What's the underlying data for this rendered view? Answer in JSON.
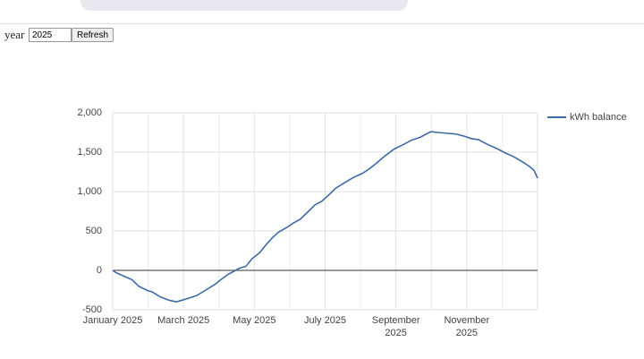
{
  "toolbar": {
    "label": "year",
    "input": "2025",
    "button": "Refresh"
  },
  "chart_data": {
    "type": "line",
    "x": [
      0,
      0.1,
      0.35,
      0.55,
      0.73,
      1.0,
      1.1,
      1.36,
      1.6,
      1.8,
      1.95,
      2.17,
      2.37,
      2.63,
      2.88,
      3.08,
      3.26,
      3.43,
      3.59,
      3.76,
      3.94,
      4.14,
      4.34,
      4.52,
      4.7,
      4.9,
      5.1,
      5.3,
      5.53,
      5.71,
      5.91,
      6.11,
      6.29,
      6.54,
      6.8,
      7.05,
      7.22,
      7.42,
      7.63,
      7.8,
      7.95,
      8.18,
      8.43,
      8.69,
      8.81,
      8.99,
      9.19,
      9.45,
      9.7,
      9.95,
      10.15,
      10.33,
      10.58,
      10.83,
      11.09,
      11.34,
      11.6,
      11.77,
      11.9,
      12.0
    ],
    "series": [
      {
        "name": "kWh balance",
        "color": "#3b6aa6",
        "values": [
          0,
          -30,
          -80,
          -120,
          -200,
          -260,
          -270,
          -340,
          -380,
          -400,
          -380,
          -350,
          -320,
          -250,
          -180,
          -110,
          -50,
          -10,
          30,
          50,
          150,
          220,
          330,
          420,
          490,
          540,
          600,
          650,
          750,
          830,
          880,
          960,
          1040,
          1110,
          1180,
          1230,
          1280,
          1350,
          1430,
          1490,
          1540,
          1590,
          1650,
          1690,
          1720,
          1760,
          1750,
          1740,
          1730,
          1700,
          1670,
          1660,
          1600,
          1550,
          1490,
          1440,
          1370,
          1320,
          1270,
          1170
        ]
      }
    ],
    "xlim": [
      0,
      12
    ],
    "xticks": [
      {
        "value": 0,
        "label": "January 2025"
      },
      {
        "value": 2,
        "label": "March 2025"
      },
      {
        "value": 4,
        "label": "May 2025"
      },
      {
        "value": 6,
        "label": "July 2025"
      },
      {
        "value": 8,
        "label": "September 2025"
      },
      {
        "value": 10,
        "label": "November 2025"
      }
    ],
    "ylim": [
      -500,
      2000
    ],
    "yticks": [
      -500,
      0,
      500,
      {
        "value": 1000,
        "label": "1,000"
      },
      {
        "value": 1500,
        "label": "1,500"
      },
      {
        "value": 2000,
        "label": "2,000"
      }
    ],
    "grid": true,
    "legend": "right"
  }
}
